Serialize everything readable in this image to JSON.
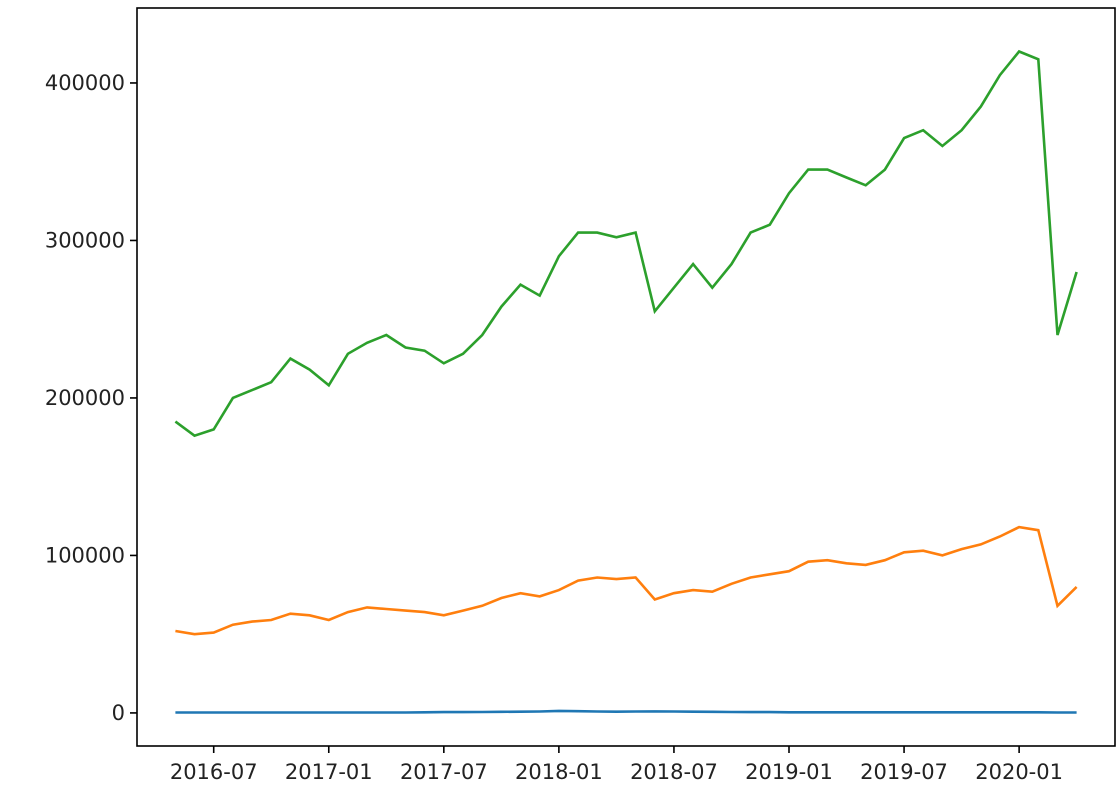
{
  "chart_data": {
    "type": "line",
    "x": [
      "2016-05",
      "2016-06",
      "2016-07",
      "2016-08",
      "2016-09",
      "2016-10",
      "2016-11",
      "2016-12",
      "2017-01",
      "2017-02",
      "2017-03",
      "2017-04",
      "2017-05",
      "2017-06",
      "2017-07",
      "2017-08",
      "2017-09",
      "2017-10",
      "2017-11",
      "2017-12",
      "2018-01",
      "2018-02",
      "2018-03",
      "2018-04",
      "2018-05",
      "2018-06",
      "2018-07",
      "2018-08",
      "2018-09",
      "2018-10",
      "2018-11",
      "2018-12",
      "2019-01",
      "2019-02",
      "2019-03",
      "2019-04",
      "2019-05",
      "2019-06",
      "2019-07",
      "2019-08",
      "2019-09",
      "2019-10",
      "2019-11",
      "2019-12",
      "2020-01",
      "2020-02",
      "2020-03",
      "2020-04"
    ],
    "series": [
      {
        "color": "#1f77b4",
        "values": [
          300,
          300,
          300,
          300,
          300,
          300,
          300,
          300,
          300,
          300,
          300,
          300,
          300,
          400,
          500,
          500,
          600,
          700,
          800,
          900,
          1300,
          1100,
          900,
          800,
          900,
          1000,
          900,
          800,
          700,
          600,
          500,
          500,
          400,
          400,
          400,
          400,
          400,
          400,
          400,
          400,
          400,
          400,
          400,
          400,
          400,
          400,
          300,
          300
        ]
      },
      {
        "color": "#ff7f0e",
        "values": [
          52000,
          50000,
          51000,
          56000,
          58000,
          59000,
          63000,
          62000,
          59000,
          64000,
          67000,
          66000,
          65000,
          64000,
          62000,
          65000,
          68000,
          73000,
          76000,
          74000,
          78000,
          84000,
          86000,
          85000,
          86000,
          72000,
          76000,
          78000,
          77000,
          82000,
          86000,
          88000,
          90000,
          96000,
          97000,
          95000,
          94000,
          97000,
          102000,
          103000,
          100000,
          104000,
          107000,
          112000,
          118000,
          116000,
          68000,
          80000
        ]
      },
      {
        "color": "#2ca02c",
        "values": [
          185000,
          176000,
          180000,
          200000,
          205000,
          210000,
          225000,
          218000,
          208000,
          228000,
          235000,
          240000,
          232000,
          230000,
          222000,
          228000,
          240000,
          258000,
          272000,
          265000,
          290000,
          305000,
          305000,
          302000,
          305000,
          255000,
          270000,
          285000,
          270000,
          285000,
          305000,
          310000,
          330000,
          345000,
          345000,
          340000,
          335000,
          345000,
          365000,
          370000,
          360000,
          370000,
          385000,
          405000,
          420000,
          415000,
          240000,
          280000
        ]
      }
    ],
    "xlim": [
      "2016-03",
      "2020-06"
    ],
    "xticks": [
      "2016-07",
      "2017-01",
      "2017-07",
      "2018-01",
      "2018-07",
      "2019-01",
      "2019-07",
      "2020-01"
    ],
    "ylim": [
      -21000,
      447600
    ],
    "yticks": [
      0,
      100000,
      200000,
      300000,
      400000
    ]
  }
}
